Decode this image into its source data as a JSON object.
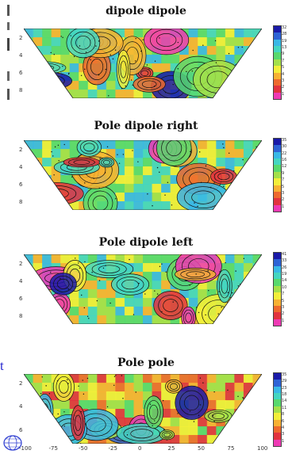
{
  "chart_data": [
    {
      "type": "heatmap",
      "title": "dipole dipole",
      "yticks": [
        "2",
        "4",
        "6",
        "8"
      ],
      "xticks": [],
      "colorbar_ticks": [
        "32",
        "28",
        "19",
        "13",
        "9",
        "7",
        "5",
        "4",
        "3",
        "2",
        "1"
      ],
      "colormap": [
        "#1a1aa8",
        "#2e63d6",
        "#39b8e6",
        "#44d6c1",
        "#58d96e",
        "#a4e04a",
        "#f2ee3a",
        "#f7b133",
        "#ee6a2e",
        "#e2333e",
        "#ee3ab4"
      ]
    },
    {
      "type": "heatmap",
      "title": "Pole dipole right",
      "yticks": [
        "2",
        "4",
        "6",
        "8"
      ],
      "xticks": [],
      "colorbar_ticks": [
        "35",
        "30",
        "22",
        "16",
        "12",
        "9",
        "7",
        "5",
        "3",
        "2",
        "1"
      ],
      "colormap": [
        "#1a1aa8",
        "#2e63d6",
        "#39b8e6",
        "#44d6c1",
        "#58d96e",
        "#a4e04a",
        "#f2ee3a",
        "#f7b133",
        "#ee6a2e",
        "#e2333e",
        "#ee3ab4"
      ]
    },
    {
      "type": "heatmap",
      "title": "Pole dipole left",
      "yticks": [
        "2",
        "4",
        "6",
        "8"
      ],
      "xticks": [],
      "colorbar_ticks": [
        "41",
        "33",
        "26",
        "19",
        "14",
        "10",
        "7",
        "5",
        "3",
        "2",
        "1"
      ],
      "colormap": [
        "#1a1aa8",
        "#2e63d6",
        "#39b8e6",
        "#44d6c1",
        "#58d96e",
        "#a4e04a",
        "#f2ee3a",
        "#f7b133",
        "#ee6a2e",
        "#e2333e",
        "#ee3ab4"
      ]
    },
    {
      "type": "heatmap",
      "title": "Pole pole",
      "yticks": [
        "2",
        "4",
        "6"
      ],
      "xticks": [
        "-100",
        "-75",
        "-50",
        "-25",
        "0",
        "25",
        "50",
        "75",
        "100"
      ],
      "colorbar_ticks": [
        "35",
        "29",
        "23",
        "18",
        "14",
        "11",
        "8",
        "6",
        "4",
        "3",
        "1"
      ],
      "colormap": [
        "#1a1aa8",
        "#2e63d6",
        "#39b8e6",
        "#44d6c1",
        "#58d96e",
        "#a4e04a",
        "#f2ee3a",
        "#f7b133",
        "#ee6a2e",
        "#e2333e",
        "#ee3ab4"
      ]
    }
  ],
  "side": {
    "fragment": "t"
  }
}
